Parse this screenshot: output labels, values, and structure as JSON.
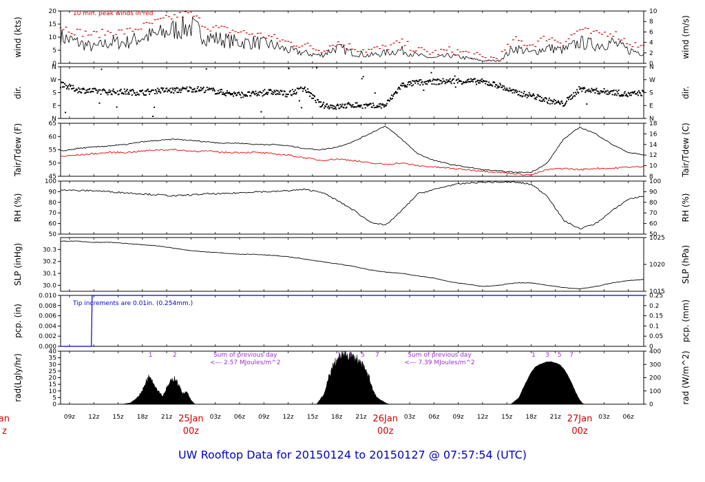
{
  "title": "UW Rooftop Data for 20150124  to  20150127 @ 07:57:54  (UTC)",
  "time_axis": {
    "hour_ticks": [
      "09z",
      "12z",
      "15z",
      "18z",
      "21z",
      "03z",
      "06z",
      "09z",
      "12z",
      "15z",
      "18z",
      "21z",
      "03z",
      "06z",
      "09z",
      "12z",
      "15z",
      "18z",
      "21z",
      "03z",
      "06z"
    ],
    "day_labels": [
      {
        "date": "25Jan",
        "hour": "00z"
      },
      {
        "date": "26Jan",
        "hour": "00z"
      },
      {
        "date": "27Jan",
        "hour": "00z"
      }
    ],
    "left_edge_date": "Jan",
    "left_edge_hour": "z",
    "start_hour_utc": 7.9,
    "end_hour_utc": 79.9
  },
  "colors": {
    "primary": "#000000",
    "peak": "#d00000",
    "dewpoint": "#e00000",
    "precip": "#0000c8",
    "annotation": "#9a30c8"
  },
  "chart_data": [
    {
      "type": "line",
      "panel": "wind",
      "ylabel_left": "wind (kts)",
      "ylabel_right": "wind (m/s)",
      "ylim": [
        0,
        20
      ],
      "yticks": [
        "0",
        "5",
        "10",
        "15",
        "20"
      ],
      "yticks_right": [
        "0",
        "2",
        "4",
        "6",
        "8",
        "10"
      ],
      "annotation": "10 min. peak winds in red",
      "series": [
        {
          "name": "wind speed (kts)",
          "x": [
            8,
            10,
            12,
            14,
            16,
            18,
            20,
            22,
            24,
            26,
            28,
            30,
            32,
            34,
            36,
            38,
            40,
            42,
            44,
            46,
            48,
            50,
            52,
            54,
            56,
            58,
            60,
            62,
            64,
            66,
            68,
            70,
            72,
            74,
            76,
            78,
            80
          ],
          "values": [
            10,
            8,
            6,
            8,
            8,
            10,
            11,
            13,
            14,
            10,
            9,
            8,
            8,
            7,
            5,
            4,
            3,
            6,
            4,
            3,
            4,
            5,
            3,
            2,
            3,
            2,
            1,
            1,
            6,
            4,
            6,
            5,
            8,
            7,
            8,
            5,
            4
          ]
        },
        {
          "name": "10 min peak (kts)",
          "x": [
            8,
            10,
            12,
            14,
            16,
            18,
            20,
            22,
            24,
            26,
            28,
            30,
            32,
            34,
            36,
            38,
            40,
            42,
            44,
            46,
            48,
            50,
            52,
            54,
            56,
            58,
            60,
            62,
            64,
            66,
            68,
            70,
            72,
            74,
            76,
            78,
            80
          ],
          "values": [
            14,
            12,
            11,
            12,
            12,
            14,
            16,
            18,
            19,
            14,
            13,
            12,
            11,
            10,
            8,
            7,
            5,
            8,
            6,
            5,
            6,
            8,
            5,
            4,
            5,
            4,
            2,
            2,
            9,
            7,
            10,
            8,
            13,
            11,
            12,
            8,
            6
          ]
        }
      ]
    },
    {
      "type": "scatter",
      "panel": "direction",
      "ylabel_left": "dir.",
      "ylabel_right": "dir.",
      "yticks": [
        "N",
        "E",
        "S",
        "W",
        "N"
      ],
      "ylim": [
        0,
        360
      ],
      "series": [
        {
          "name": "wind direction (deg)",
          "x": [
            8,
            10,
            12,
            14,
            16,
            18,
            20,
            22,
            24,
            26,
            28,
            30,
            32,
            34,
            36,
            38,
            40,
            42,
            44,
            46,
            48,
            50,
            52,
            54,
            56,
            58,
            60,
            62,
            64,
            66,
            68,
            70,
            72,
            74,
            76,
            78,
            80
          ],
          "values": [
            235,
            200,
            190,
            185,
            185,
            180,
            195,
            195,
            205,
            200,
            180,
            165,
            170,
            185,
            170,
            210,
            95,
            80,
            95,
            85,
            90,
            230,
            250,
            255,
            260,
            260,
            255,
            230,
            180,
            160,
            125,
            100,
            205,
            190,
            185,
            165,
            180
          ]
        }
      ]
    },
    {
      "type": "line",
      "panel": "temperature",
      "ylabel_left": "Tair/Tdew (F)",
      "ylabel_right": "Tair/Tdew (C)",
      "ylim": [
        45,
        65
      ],
      "yticks": [
        "45",
        "50",
        "55",
        "60",
        "65"
      ],
      "yticks_right": [
        "8",
        "10",
        "12",
        "14",
        "16",
        "18"
      ],
      "series": [
        {
          "name": "Tair (F)",
          "x": [
            8,
            10,
            12,
            14,
            16,
            18,
            20,
            22,
            24,
            26,
            28,
            30,
            32,
            34,
            36,
            38,
            40,
            42,
            44,
            46,
            48,
            50,
            52,
            54,
            56,
            58,
            60,
            62,
            64,
            66,
            68,
            70,
            72,
            74,
            76,
            78,
            80
          ],
          "values": [
            54.5,
            55.5,
            56,
            56.5,
            57,
            58,
            58.5,
            59,
            58.5,
            58,
            57.5,
            57.5,
            57,
            57,
            56.5,
            55.5,
            55,
            56,
            58,
            61,
            64,
            59,
            53.5,
            51,
            49.5,
            48.5,
            47.5,
            47,
            46.5,
            46.5,
            50,
            59,
            63.5,
            61,
            57,
            54,
            53
          ]
        },
        {
          "name": "Tdew (F)",
          "x": [
            8,
            10,
            12,
            14,
            16,
            18,
            20,
            22,
            24,
            26,
            28,
            30,
            32,
            34,
            36,
            38,
            40,
            42,
            44,
            46,
            48,
            50,
            52,
            54,
            56,
            58,
            60,
            62,
            64,
            66,
            68,
            70,
            72,
            74,
            76,
            78,
            80
          ],
          "values": [
            52.5,
            53,
            53.5,
            54,
            54,
            54.5,
            55,
            55,
            54.5,
            54.5,
            54,
            54,
            54,
            53.5,
            53,
            52,
            51,
            51.5,
            51,
            50,
            49.5,
            50,
            49,
            48.5,
            48,
            47.5,
            47,
            46.5,
            46,
            45.5,
            47.5,
            48,
            47.5,
            48,
            48,
            48.5,
            48.5
          ]
        }
      ]
    },
    {
      "type": "line",
      "panel": "humidity",
      "ylabel_left": "RH (%)",
      "ylabel_right": "RH (%)",
      "ylim": [
        50,
        100
      ],
      "yticks": [
        "50",
        "60",
        "70",
        "80",
        "90",
        "100"
      ],
      "series": [
        {
          "name": "RH (%)",
          "x": [
            8,
            10,
            12,
            14,
            16,
            18,
            20,
            22,
            24,
            26,
            28,
            30,
            32,
            34,
            36,
            38,
            40,
            42,
            44,
            46,
            48,
            50,
            52,
            54,
            56,
            58,
            60,
            62,
            64,
            66,
            68,
            70,
            72,
            74,
            76,
            78,
            80
          ],
          "values": [
            92,
            91,
            91,
            90,
            89,
            88,
            87,
            86,
            87,
            88,
            88,
            89,
            90,
            90,
            91,
            92,
            90,
            82,
            73,
            62,
            58,
            72,
            88,
            92,
            96,
            98,
            99,
            99,
            99,
            97,
            86,
            63,
            55,
            60,
            72,
            83,
            86
          ]
        }
      ]
    },
    {
      "type": "line",
      "panel": "pressure",
      "ylabel_left": "SLP (inHg)",
      "ylabel_right": "SLP (hPa)",
      "ylim": [
        29.95,
        30.4
      ],
      "yticks": [
        "30.0",
        "30.1",
        "30.2",
        "30.3"
      ],
      "yticks_right": [
        "1015",
        "1020",
        "1025"
      ],
      "series": [
        {
          "name": "SLP (inHg)",
          "x": [
            8,
            10,
            12,
            14,
            16,
            18,
            20,
            22,
            24,
            26,
            28,
            30,
            32,
            34,
            36,
            38,
            40,
            42,
            44,
            46,
            48,
            50,
            52,
            54,
            56,
            58,
            60,
            62,
            64,
            66,
            68,
            70,
            72,
            74,
            76,
            78,
            80
          ],
          "values": [
            30.37,
            30.37,
            30.36,
            30.36,
            30.35,
            30.34,
            30.33,
            30.31,
            30.29,
            30.28,
            30.27,
            30.26,
            30.26,
            30.25,
            30.24,
            30.22,
            30.2,
            30.18,
            30.16,
            30.13,
            30.11,
            30.1,
            30.08,
            30.06,
            30.03,
            30.01,
            29.99,
            30.0,
            30.02,
            30.02,
            30.0,
            29.98,
            29.97,
            29.99,
            30.02,
            30.04,
            30.05
          ]
        }
      ]
    },
    {
      "type": "line",
      "panel": "precipitation",
      "ylabel_left": "pcp. (in)",
      "ylabel_right": "pcp. (mm)",
      "ylim": [
        0,
        0.01
      ],
      "yticks": [
        "0.000",
        "0.002",
        "0.004",
        "0.006",
        "0.008",
        "0.010"
      ],
      "yticks_right": [
        "0",
        "0.05",
        "0.1",
        "0.15",
        "0.2",
        "0.25"
      ],
      "annotation": "Tip increments are 0.01in. (0.254mm.)",
      "series": [
        {
          "name": "cumulative pcp (in)",
          "x": [
            7.9,
            11.7,
            11.8,
            79.9
          ],
          "values": [
            0,
            0,
            0.01,
            0.01
          ]
        }
      ]
    },
    {
      "type": "area",
      "panel": "radiation",
      "ylabel_left": "rad(Lgly/hr)",
      "ylabel_right": "rad (W/m^2)",
      "ylim": [
        0,
        40
      ],
      "yticks": [
        "0",
        "5",
        "10",
        "15",
        "20",
        "25",
        "30",
        "35",
        "40"
      ],
      "yticks_right": [
        "0",
        "100",
        "200",
        "300",
        "400"
      ],
      "hour_marks": [
        {
          "x": 19,
          "label": "1"
        },
        {
          "x": 22,
          "label": "2"
        },
        {
          "x": 42.3,
          "label": "1"
        },
        {
          "x": 43.7,
          "label": "3"
        },
        {
          "x": 45.2,
          "label": "5"
        },
        {
          "x": 47.0,
          "label": "7"
        },
        {
          "x": 66.3,
          "label": "1"
        },
        {
          "x": 68.0,
          "label": "3"
        },
        {
          "x": 69.5,
          "label": "5"
        },
        {
          "x": 71.0,
          "label": "7"
        }
      ],
      "annotations": [
        {
          "x": 29,
          "line1": "Sum of previous day",
          "line2": "<--- 2.57 MJoules/m^2"
        },
        {
          "x": 53,
          "line1": "Sum of previous day",
          "line2": "<--- 7.39 MJoules/m^2"
        }
      ],
      "series": [
        {
          "name": "solar radiation (Lgly/hr)",
          "x": [
            15.5,
            16.5,
            17,
            17.5,
            18,
            18.5,
            19,
            19.5,
            20,
            20.5,
            21,
            21.5,
            22,
            22.5,
            23,
            23.5,
            24,
            24.5,
            39.5,
            40.5,
            41,
            41.5,
            42,
            42.5,
            43,
            43.5,
            44,
            44.5,
            45,
            45.5,
            46,
            46.5,
            47,
            47.5,
            48,
            48.5,
            63.5,
            64.5,
            65,
            65.5,
            66,
            66.5,
            67,
            67.5,
            68,
            68.5,
            69,
            69.5,
            70,
            70.5,
            71,
            71.5,
            72,
            72.5
          ],
          "values": [
            0,
            1,
            3,
            6,
            10,
            18,
            22,
            14,
            10,
            6,
            12,
            17,
            20,
            14,
            8,
            9,
            3,
            0,
            0,
            8,
            20,
            28,
            33,
            36,
            38,
            37,
            35,
            34,
            30,
            26,
            20,
            10,
            5,
            3,
            1,
            0,
            0,
            5,
            12,
            18,
            24,
            28,
            30,
            31,
            32,
            32,
            31,
            30,
            27,
            22,
            16,
            9,
            3,
            0
          ]
        }
      ]
    }
  ]
}
